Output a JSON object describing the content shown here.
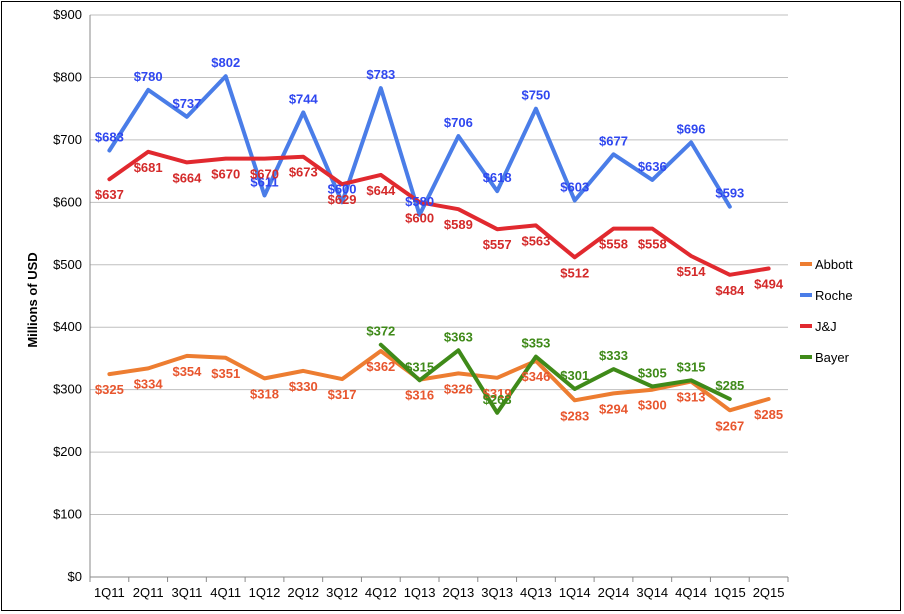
{
  "chart_data": {
    "type": "line",
    "title": "",
    "xlabel": "",
    "ylabel": "Millions of USD",
    "ylim": [
      0,
      900
    ],
    "yticks": [
      0,
      100,
      200,
      300,
      400,
      500,
      600,
      700,
      800,
      900
    ],
    "ytick_labels": [
      "$0",
      "$100",
      "$200",
      "$300",
      "$400",
      "$500",
      "$600",
      "$700",
      "$800",
      "$900"
    ],
    "grid": true,
    "legend_position": "right",
    "categories": [
      "1Q11",
      "2Q11",
      "3Q11",
      "4Q11",
      "1Q12",
      "2Q12",
      "3Q12",
      "4Q12",
      "1Q13",
      "2Q13",
      "3Q13",
      "4Q13",
      "1Q14",
      "2Q14",
      "3Q14",
      "4Q14",
      "1Q15",
      "2Q15"
    ],
    "series": [
      {
        "name": "Abbott",
        "color": "#ED7D31",
        "label_position": "below",
        "values": [
          325,
          334,
          354,
          351,
          318,
          330,
          317,
          362,
          316,
          326,
          319,
          346,
          283,
          294,
          300,
          313,
          267,
          285
        ],
        "labels": [
          "$325",
          "$334",
          "$354",
          "$351",
          "$318",
          "$330",
          "$317",
          "$362",
          "$316",
          "$326",
          "$319",
          "$346",
          "$283",
          "$294",
          "$300",
          "$313",
          "$267",
          "$285"
        ]
      },
      {
        "name": "Roche",
        "color": "#4A7DE8",
        "label_position": "above",
        "values": [
          683,
          780,
          737,
          802,
          611,
          744,
          600,
          783,
          580,
          706,
          618,
          750,
          603,
          677,
          636,
          696,
          593,
          null
        ],
        "labels": [
          "$683",
          "$780",
          "$737",
          "$802",
          "$611",
          "$744",
          "$600",
          "$783",
          "$580",
          "$706",
          "$618",
          "$750",
          "$603",
          "$677",
          "$636",
          "$696",
          "$593",
          null
        ]
      },
      {
        "name": "J&J",
        "color": "#E1292F",
        "label_position": "below",
        "values": [
          637,
          681,
          664,
          670,
          670,
          673,
          629,
          644,
          600,
          589,
          557,
          563,
          512,
          558,
          558,
          514,
          484,
          494
        ],
        "labels": [
          "$637",
          "$681",
          "$664",
          "$670",
          "$670",
          "$673",
          "$629",
          "$644",
          "$600",
          "$589",
          "$557",
          "$563",
          "$512",
          "$558",
          "$558",
          "$514",
          "$484",
          "$494"
        ]
      },
      {
        "name": "Bayer",
        "color": "#3F8A19",
        "label_position": "above",
        "values": [
          null,
          null,
          null,
          null,
          null,
          null,
          null,
          372,
          315,
          363,
          263,
          353,
          301,
          333,
          305,
          315,
          285,
          null
        ],
        "labels": [
          null,
          null,
          null,
          null,
          null,
          null,
          null,
          "$372",
          "$315",
          "$363",
          "$263",
          "$353",
          "$301",
          "$333",
          "$305",
          "$315",
          "$285",
          null
        ]
      }
    ]
  },
  "label_colors": {
    "Abbott": "#E8562E",
    "Roche": "#2F47F0",
    "J&J": "#D42A2A",
    "Bayer": "#3F8A19"
  }
}
